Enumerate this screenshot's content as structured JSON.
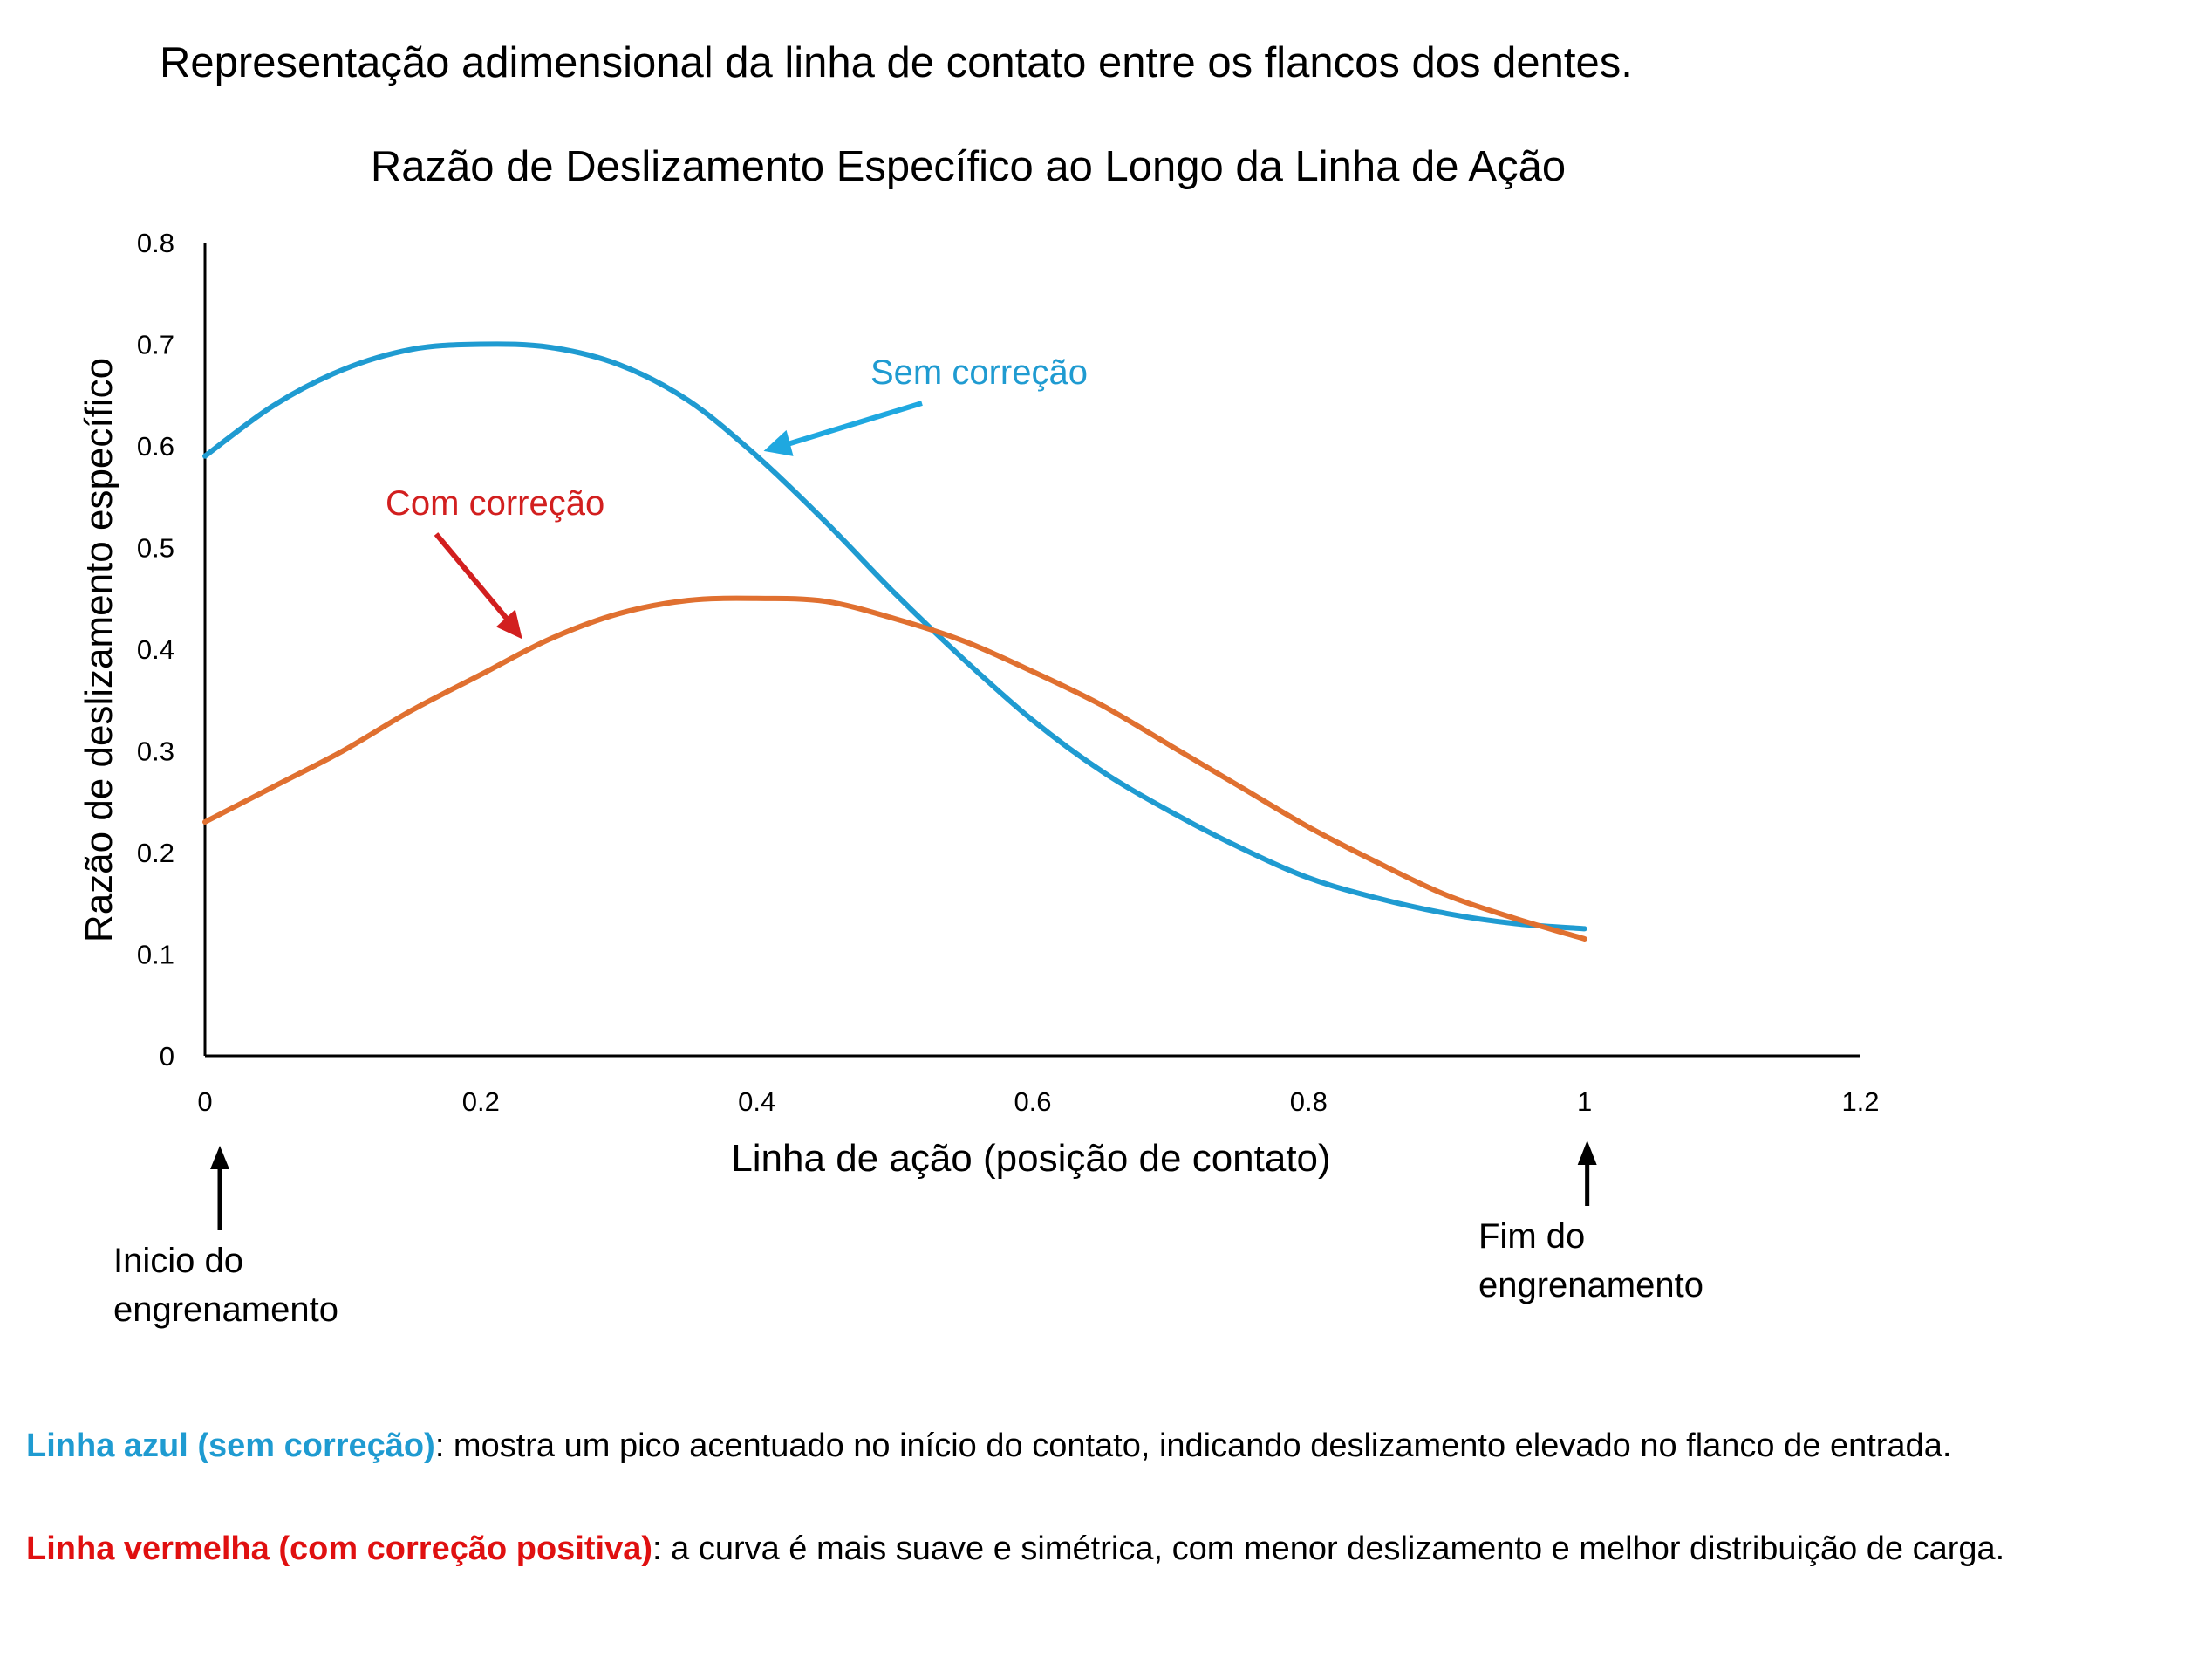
{
  "chart_data": {
    "type": "line",
    "heading": "Representação adimensional da linha de contato entre os flancos dos dentes.",
    "title": "Razão de Deslizamento Específico ao Longo da Linha de Ação",
    "xlabel": "Linha de ação (posição de contato)",
    "ylabel": "Razão de deslizamento específico",
    "xlim": [
      0,
      1.2
    ],
    "ylim": [
      0,
      0.8
    ],
    "x_ticks": [
      0,
      0.2,
      0.4,
      0.6,
      0.8,
      1,
      1.2
    ],
    "x_tick_labels": [
      "0",
      "0.2",
      "0.4",
      "0.6",
      "0.8",
      "1",
      "1.2"
    ],
    "y_ticks": [
      0,
      0.1,
      0.2,
      0.3,
      0.4,
      0.5,
      0.6,
      0.7,
      0.8
    ],
    "y_tick_labels": [
      "0",
      "0.1",
      "0.2",
      "0.3",
      "0.4",
      "0.5",
      "0.6",
      "0.7",
      "0.8"
    ],
    "grid": false,
    "legend": "none",
    "series": [
      {
        "name": "Sem correção",
        "color": "#1f9bd1",
        "x": [
          0,
          0.05,
          0.1,
          0.15,
          0.2,
          0.25,
          0.3,
          0.35,
          0.4,
          0.45,
          0.5,
          0.55,
          0.6,
          0.65,
          0.7,
          0.75,
          0.8,
          0.85,
          0.9,
          0.95,
          1.0
        ],
        "y": [
          0.59,
          0.64,
          0.675,
          0.695,
          0.7,
          0.697,
          0.68,
          0.645,
          0.59,
          0.525,
          0.455,
          0.39,
          0.33,
          0.28,
          0.24,
          0.205,
          0.175,
          0.155,
          0.14,
          0.13,
          0.125
        ]
      },
      {
        "name": "Com correção",
        "color": "#e07030",
        "x": [
          0,
          0.05,
          0.1,
          0.15,
          0.2,
          0.25,
          0.3,
          0.35,
          0.4,
          0.45,
          0.5,
          0.55,
          0.6,
          0.65,
          0.7,
          0.75,
          0.8,
          0.85,
          0.9,
          0.95,
          1.0
        ],
        "y": [
          0.23,
          0.265,
          0.3,
          0.34,
          0.375,
          0.41,
          0.435,
          0.448,
          0.45,
          0.447,
          0.43,
          0.408,
          0.378,
          0.345,
          0.305,
          0.265,
          0.225,
          0.19,
          0.158,
          0.135,
          0.115
        ]
      }
    ],
    "annotations": [
      {
        "text": "Sem correção",
        "color": "#1f9bd1",
        "points_to": [
          0.405,
          0.595
        ]
      },
      {
        "text": "Com correção",
        "color": "#d21f1f",
        "points_to": [
          0.23,
          0.41
        ]
      }
    ],
    "markers": [
      {
        "lines": [
          "Inicio do",
          "engrenamento"
        ],
        "x": 0
      },
      {
        "lines": [
          "Fim do",
          "engrenamento"
        ],
        "x": 1
      }
    ]
  },
  "notes": [
    {
      "label": "Linha azul (sem correção)",
      "label_color": "#1f9bd1",
      "text": ": mostra um pico acentuado no início do contato, indicando deslizamento elevado no flanco de entrada."
    },
    {
      "label": "Linha vermelha (com correção positiva)",
      "label_color": "#e01010",
      "text": ": a curva é mais suave e simétrica, com menor deslizamento e melhor distribuição de carga."
    }
  ]
}
